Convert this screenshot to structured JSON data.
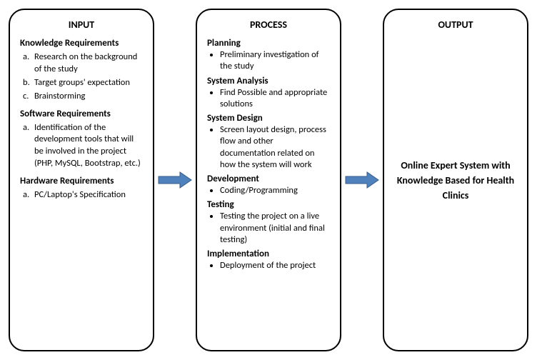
{
  "diagram": {
    "type": "flowchart",
    "layout": "horizontal-3-box-with-arrows",
    "background_color": "#ffffff",
    "box_border_color": "#000000",
    "box_border_width": 2,
    "box_border_radius": 22,
    "arrow_fill": "#4f81bd",
    "arrow_stroke": "#385d8a",
    "font_family": "Calibri",
    "title_fontsize": 14,
    "body_fontsize": 12.5
  },
  "input": {
    "title": "INPUT",
    "sections": [
      {
        "heading": "Knowledge Requirements",
        "items": [
          {
            "marker": "a.",
            "text": "Research on the background of the study"
          },
          {
            "marker": "b.",
            "text": "Target groups' expectation"
          },
          {
            "marker": "c.",
            "text": "Brainstorming"
          }
        ]
      },
      {
        "heading": "Software Requirements",
        "items": [
          {
            "marker": "a.",
            "text": "Identification of the development tools that will be involved in the project (PHP, MySQL, Bootstrap, etc.)"
          }
        ]
      },
      {
        "heading": "Hardware Requirements",
        "items": [
          {
            "marker": "a.",
            "text": "PC/Laptop's Specification"
          }
        ]
      }
    ]
  },
  "process": {
    "title": "PROCESS",
    "phases": [
      {
        "name": "Planning",
        "bullets": [
          "Preliminary investigation of the study"
        ]
      },
      {
        "name": "System Analysis",
        "bullets": [
          "Find Possible and appropriate solutions"
        ]
      },
      {
        "name": "System Design",
        "bullets": [
          "Screen layout design, process flow and other documentation related on how the system will work"
        ]
      },
      {
        "name": "Development",
        "bullets": [
          "Coding/Programming"
        ]
      },
      {
        "name": "Testing",
        "bullets": [
          "Testing the project on a live environment (initial and final testing)"
        ]
      },
      {
        "name": "Implementation",
        "bullets": [
          "Deployment of the project"
        ]
      }
    ]
  },
  "output": {
    "title": "OUTPUT",
    "text": "Online Expert System with Knowledge Based for Health Clinics"
  }
}
